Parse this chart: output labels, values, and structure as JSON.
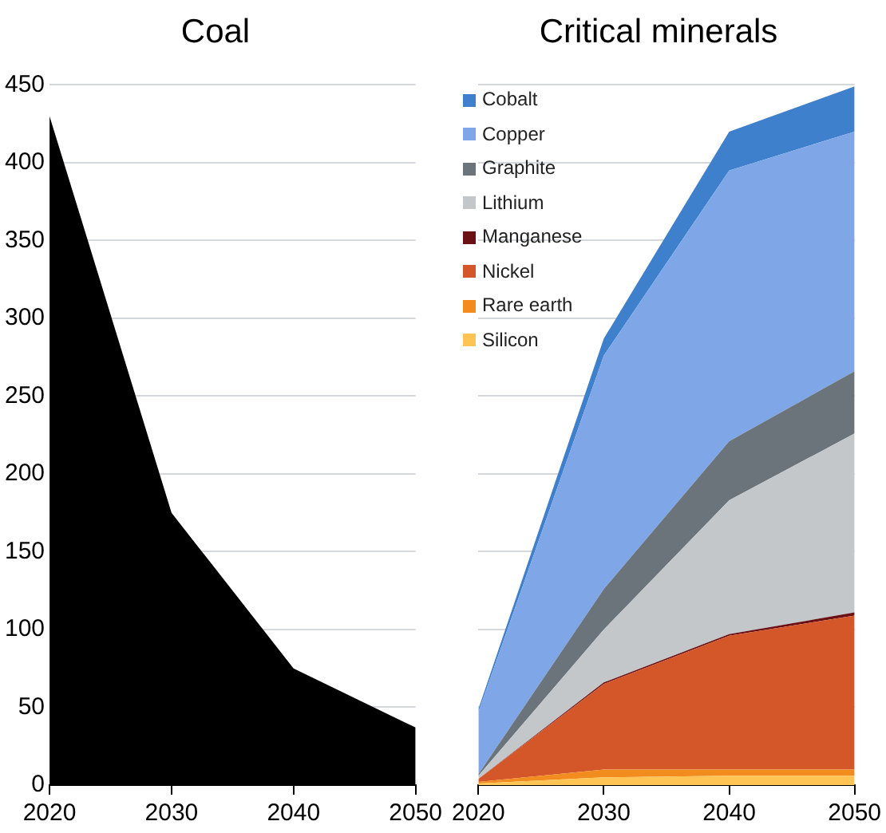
{
  "chart_data": [
    {
      "type": "area",
      "title": "Coal",
      "x": [
        2020,
        2030,
        2040,
        2050
      ],
      "xlim": [
        2020,
        2050
      ],
      "xticks": [
        2020,
        2030,
        2040,
        2050
      ],
      "ylim": [
        0,
        450
      ],
      "yticks": [
        0,
        50,
        100,
        150,
        200,
        250,
        300,
        350,
        400,
        450
      ],
      "grid": "y",
      "legend": false,
      "series": [
        {
          "color": "#000000",
          "values": [
            430,
            175,
            75,
            37
          ]
        }
      ]
    },
    {
      "type": "area",
      "title": "Critical minerals",
      "stacked": true,
      "x": [
        2020,
        2030,
        2040,
        2050
      ],
      "xlim": [
        2020,
        2050
      ],
      "xticks": [
        2020,
        2030,
        2040,
        2050
      ],
      "ylim": [
        0,
        450
      ],
      "yticks": [
        0,
        50,
        100,
        150,
        200,
        250,
        300,
        350,
        400,
        450
      ],
      "tick_labels": "x",
      "grid": "y",
      "legend": "top left",
      "series": [
        {
          "name": "Silicon",
          "color": "#ffc454",
          "values": [
            1,
            5,
            6,
            6
          ]
        },
        {
          "name": "Rare earth",
          "color": "#f28c1f",
          "values": [
            1,
            5,
            4,
            4
          ]
        },
        {
          "name": "Nickel",
          "color": "#d4572a",
          "values": [
            2,
            55,
            86,
            99
          ]
        },
        {
          "name": "Manganese",
          "color": "#6b1014",
          "values": [
            0,
            1,
            1,
            2
          ]
        },
        {
          "name": "Lithium",
          "color": "#c4c7ca",
          "values": [
            2,
            34,
            86,
            115
          ]
        },
        {
          "name": "Graphite",
          "color": "#6b737b",
          "values": [
            1,
            26,
            38,
            40
          ]
        },
        {
          "name": "Copper",
          "color": "#7fa7e8",
          "values": [
            40,
            150,
            174,
            154
          ]
        },
        {
          "name": "Cobalt",
          "color": "#3f80cc",
          "values": [
            2,
            11,
            25,
            29
          ]
        }
      ]
    }
  ]
}
